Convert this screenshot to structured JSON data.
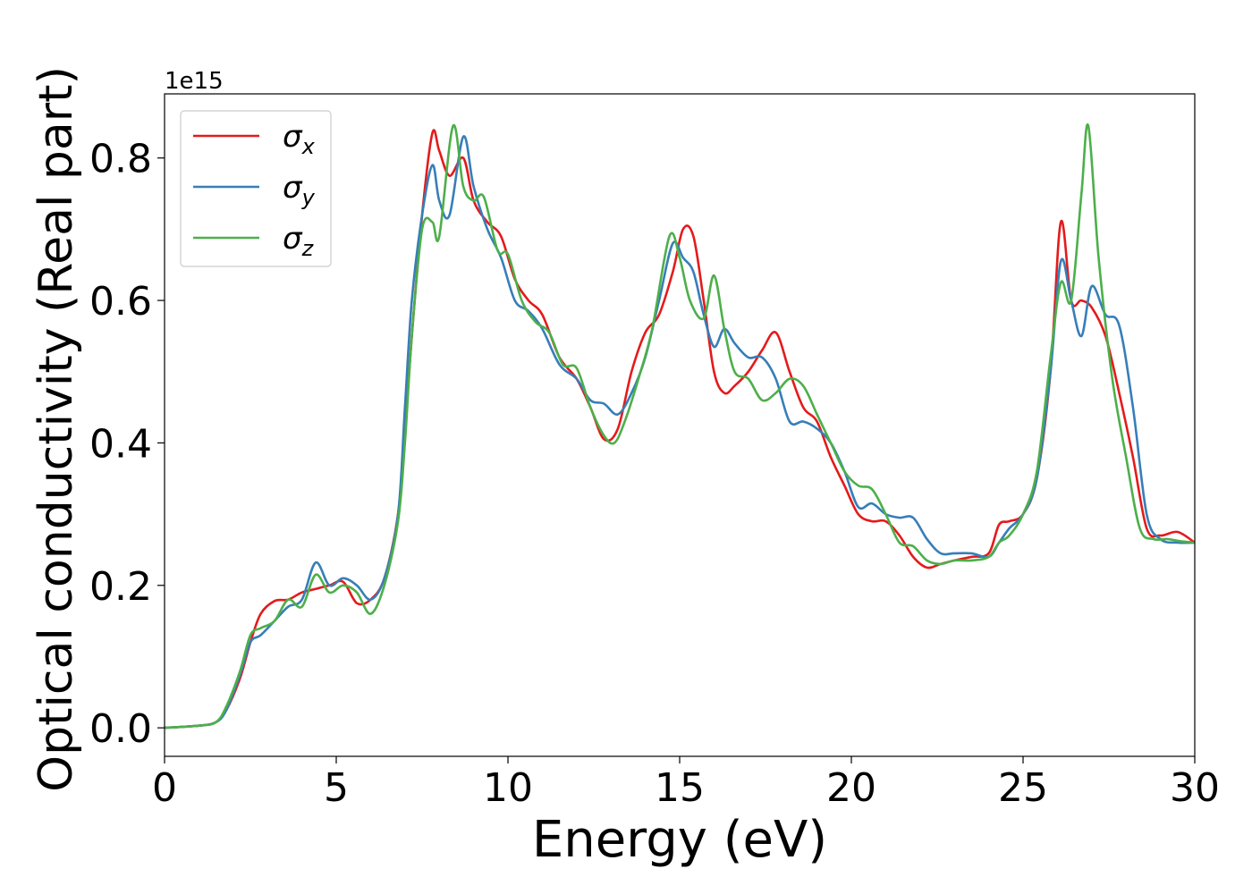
{
  "chart_data": {
    "type": "line",
    "xlabel": "Energy (eV)",
    "ylabel": "Optical conductivity (Real part)",
    "offset_label": "1e15",
    "xlim": [
      0,
      30
    ],
    "ylim": [
      -0.04,
      0.89
    ],
    "y_scale_factor": "1e15",
    "xticks": [
      0,
      5,
      10,
      15,
      20,
      25,
      30
    ],
    "yticks": [
      0.0,
      0.2,
      0.4,
      0.6,
      0.8
    ],
    "xtick_labels": [
      "0",
      "5",
      "10",
      "15",
      "20",
      "25",
      "30"
    ],
    "ytick_labels": [
      "0.0",
      "0.2",
      "0.4",
      "0.6",
      "0.8"
    ],
    "grid": false,
    "legend_position": "top-left",
    "series": [
      {
        "name": "σ_x",
        "color": "#e41a1c",
        "x": [
          0,
          1,
          1.5,
          1.8,
          2.2,
          2.5,
          2.8,
          3.2,
          3.6,
          4.0,
          4.4,
          4.8,
          5.2,
          5.6,
          6.0,
          6.4,
          6.8,
          7.0,
          7.2,
          7.5,
          7.8,
          8.0,
          8.3,
          8.7,
          9.0,
          9.4,
          9.8,
          10.2,
          10.6,
          11.0,
          11.5,
          12.0,
          12.4,
          12.8,
          13.2,
          13.6,
          14.0,
          14.4,
          14.8,
          15.1,
          15.4,
          15.7,
          16.0,
          16.3,
          16.6,
          17.0,
          17.4,
          17.8,
          18.2,
          18.6,
          19.0,
          19.4,
          19.8,
          20.2,
          20.6,
          21.0,
          21.4,
          21.8,
          22.2,
          22.6,
          23.0,
          23.5,
          24.0,
          24.3,
          24.6,
          25.0,
          25.4,
          25.8,
          26.1,
          26.4,
          26.7,
          27.0,
          27.4,
          27.8,
          28.2,
          28.6,
          29.0,
          29.5,
          30.0
        ],
        "values": [
          0.0,
          0.003,
          0.008,
          0.025,
          0.07,
          0.12,
          0.16,
          0.178,
          0.18,
          0.19,
          0.195,
          0.2,
          0.205,
          0.175,
          0.18,
          0.21,
          0.3,
          0.42,
          0.55,
          0.72,
          0.835,
          0.81,
          0.775,
          0.8,
          0.74,
          0.71,
          0.69,
          0.63,
          0.6,
          0.58,
          0.52,
          0.49,
          0.45,
          0.405,
          0.42,
          0.5,
          0.555,
          0.58,
          0.64,
          0.7,
          0.69,
          0.6,
          0.5,
          0.47,
          0.48,
          0.5,
          0.53,
          0.555,
          0.5,
          0.45,
          0.43,
          0.38,
          0.34,
          0.3,
          0.29,
          0.29,
          0.27,
          0.24,
          0.225,
          0.23,
          0.235,
          0.24,
          0.245,
          0.285,
          0.29,
          0.3,
          0.35,
          0.5,
          0.71,
          0.6,
          0.6,
          0.59,
          0.55,
          0.47,
          0.38,
          0.28,
          0.27,
          0.275,
          0.26
        ]
      },
      {
        "name": "σ_y",
        "color": "#377eb8",
        "x": [
          0,
          1,
          1.5,
          1.8,
          2.2,
          2.5,
          2.8,
          3.2,
          3.6,
          4.0,
          4.4,
          4.8,
          5.2,
          5.6,
          6.0,
          6.4,
          6.8,
          7.0,
          7.2,
          7.5,
          7.8,
          8.0,
          8.3,
          8.7,
          9.0,
          9.4,
          9.8,
          10.2,
          10.6,
          11.0,
          11.5,
          12.0,
          12.4,
          12.8,
          13.2,
          13.6,
          14.0,
          14.4,
          14.8,
          15.1,
          15.4,
          15.7,
          16.0,
          16.3,
          16.6,
          17.0,
          17.4,
          17.8,
          18.2,
          18.6,
          19.0,
          19.4,
          19.8,
          20.2,
          20.6,
          21.0,
          21.4,
          21.8,
          22.2,
          22.6,
          23.0,
          23.5,
          24.0,
          24.3,
          24.6,
          25.0,
          25.4,
          25.8,
          26.1,
          26.4,
          26.7,
          27.0,
          27.4,
          27.8,
          28.2,
          28.6,
          29.0,
          29.5,
          30.0
        ],
        "values": [
          0.0,
          0.003,
          0.008,
          0.025,
          0.075,
          0.12,
          0.13,
          0.15,
          0.17,
          0.18,
          0.232,
          0.2,
          0.21,
          0.2,
          0.18,
          0.21,
          0.3,
          0.45,
          0.6,
          0.72,
          0.79,
          0.74,
          0.72,
          0.83,
          0.76,
          0.7,
          0.66,
          0.6,
          0.585,
          0.56,
          0.51,
          0.49,
          0.46,
          0.455,
          0.44,
          0.47,
          0.52,
          0.6,
          0.68,
          0.66,
          0.64,
          0.58,
          0.535,
          0.56,
          0.54,
          0.52,
          0.52,
          0.49,
          0.43,
          0.43,
          0.42,
          0.4,
          0.36,
          0.31,
          0.315,
          0.3,
          0.295,
          0.295,
          0.265,
          0.245,
          0.245,
          0.245,
          0.24,
          0.26,
          0.28,
          0.3,
          0.35,
          0.5,
          0.655,
          0.6,
          0.55,
          0.62,
          0.58,
          0.565,
          0.45,
          0.3,
          0.265,
          0.26,
          0.26
        ]
      },
      {
        "name": "σ_z",
        "color": "#4daf4a",
        "x": [
          0,
          1,
          1.5,
          1.8,
          2.2,
          2.5,
          2.8,
          3.2,
          3.6,
          4.0,
          4.4,
          4.8,
          5.2,
          5.6,
          6.0,
          6.4,
          6.8,
          7.0,
          7.2,
          7.5,
          7.8,
          8.0,
          8.4,
          8.7,
          9.0,
          9.3,
          9.7,
          10.0,
          10.4,
          10.8,
          11.2,
          11.6,
          12.0,
          12.4,
          12.8,
          13.1,
          13.4,
          13.8,
          14.2,
          14.7,
          15.0,
          15.3,
          15.7,
          16.0,
          16.3,
          16.6,
          17.0,
          17.4,
          17.8,
          18.2,
          18.6,
          19.0,
          19.4,
          19.8,
          20.2,
          20.6,
          21.0,
          21.4,
          21.8,
          22.2,
          22.6,
          23.0,
          23.5,
          24.0,
          24.3,
          24.6,
          25.0,
          25.4,
          25.8,
          26.1,
          26.4,
          26.7,
          26.9,
          27.2,
          27.6,
          28.0,
          28.4,
          28.8,
          29.2,
          29.6,
          30.0
        ],
        "values": [
          0.0,
          0.003,
          0.008,
          0.03,
          0.08,
          0.13,
          0.14,
          0.15,
          0.18,
          0.17,
          0.215,
          0.19,
          0.2,
          0.19,
          0.16,
          0.2,
          0.29,
          0.4,
          0.55,
          0.7,
          0.71,
          0.69,
          0.845,
          0.76,
          0.74,
          0.745,
          0.67,
          0.665,
          0.6,
          0.57,
          0.555,
          0.51,
          0.505,
          0.45,
          0.41,
          0.4,
          0.43,
          0.49,
          0.56,
          0.69,
          0.66,
          0.6,
          0.575,
          0.635,
          0.56,
          0.5,
          0.49,
          0.46,
          0.47,
          0.49,
          0.48,
          0.44,
          0.4,
          0.36,
          0.34,
          0.335,
          0.3,
          0.26,
          0.255,
          0.235,
          0.23,
          0.235,
          0.235,
          0.24,
          0.26,
          0.27,
          0.3,
          0.36,
          0.52,
          0.625,
          0.6,
          0.75,
          0.845,
          0.66,
          0.49,
          0.38,
          0.28,
          0.265,
          0.265,
          0.262,
          0.26
        ]
      }
    ]
  }
}
